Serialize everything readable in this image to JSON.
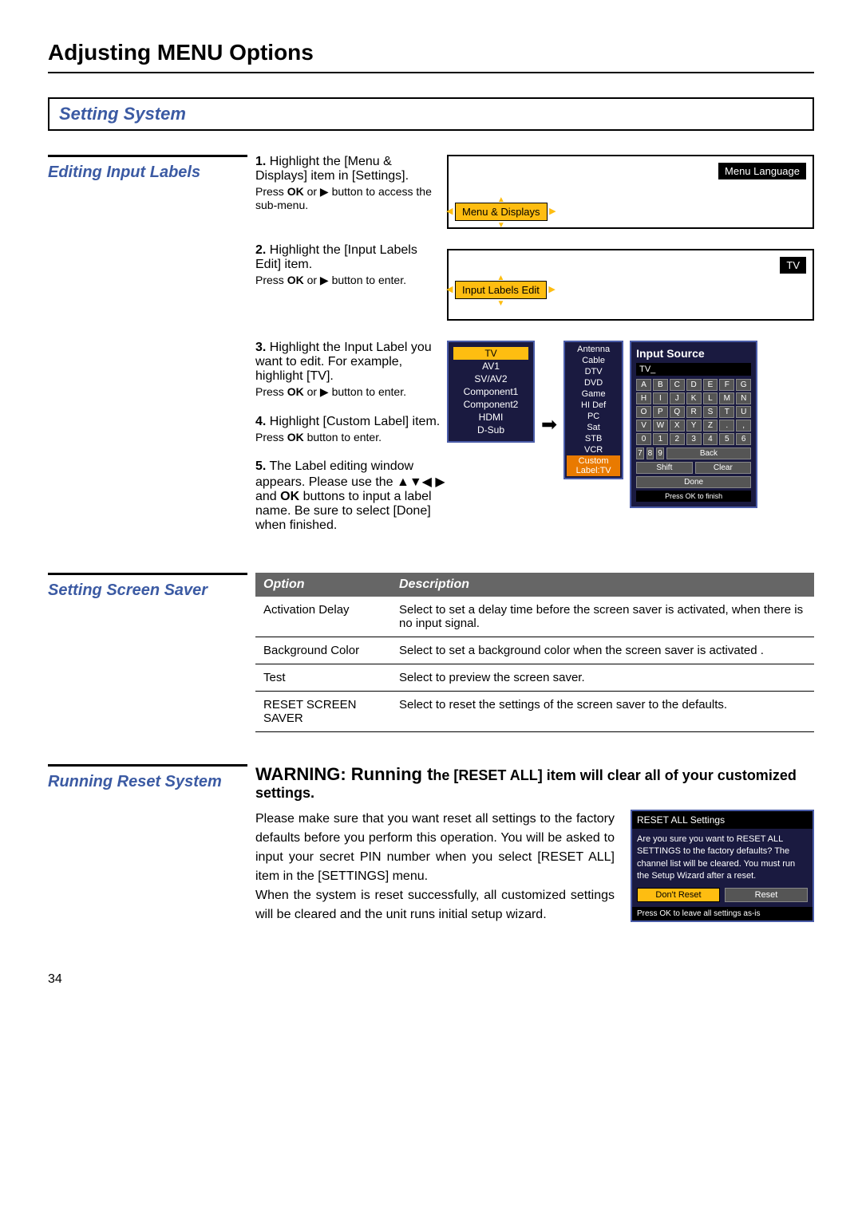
{
  "page_title": "Adjusting MENU Options",
  "section_title": "Setting System",
  "editing_labels": {
    "title": "Editing Input Labels",
    "steps": [
      {
        "num": "1.",
        "text": "Highlight the [Menu & Displays] item in [Settings].",
        "sub": "Press OK or ▶ button to access the sub-menu."
      },
      {
        "num": "2.",
        "text": "Highlight the [Input Labels Edit] item.",
        "sub": "Press OK or ▶ button to enter."
      },
      {
        "num": "3.",
        "text": "Highlight the Input Label you want to edit. For example, highlight [TV].",
        "sub": "Press OK or ▶ button to enter."
      },
      {
        "num": "4.",
        "text": "Highlight [Custom Label] item.",
        "sub": "Press OK button to enter."
      },
      {
        "num": "5.",
        "text": "The Label editing window appears. Please use the ▲▼◀ ▶ and OK buttons to input a label name. Be sure to select [Done] when finished.",
        "sub": ""
      }
    ],
    "osd1": {
      "sel": "Menu & Displays",
      "top": "Menu Language"
    },
    "osd2": {
      "sel": "Input Labels Edit",
      "top": "TV"
    },
    "label_list": [
      "TV",
      "AV1",
      "SV/AV2",
      "Component1",
      "Component2",
      "HDMI",
      "D-Sub"
    ],
    "preset_list": [
      "Antenna",
      "Cable",
      "DTV",
      "DVD",
      "Game",
      "HI Def",
      "PC",
      "Sat",
      "STB",
      "VCR",
      "Custom Label:TV"
    ],
    "keyboard": {
      "title": "Input Source",
      "input": "TV_",
      "keys": [
        "A",
        "B",
        "C",
        "D",
        "E",
        "F",
        "G",
        "H",
        "I",
        "J",
        "K",
        "L",
        "M",
        "N",
        "O",
        "P",
        "Q",
        "R",
        "S",
        "T",
        "U",
        "V",
        "W",
        "X",
        "Y",
        "Z",
        ".",
        ",",
        "0",
        "1",
        "2",
        "3",
        "4",
        "5",
        "6",
        "7",
        "8",
        "9"
      ],
      "back": "Back",
      "shift": "Shift",
      "clear": "Clear",
      "done": "Done",
      "footer": "Press OK to finish"
    }
  },
  "screen_saver": {
    "title": "Setting Screen Saver",
    "th_option": "Option",
    "th_desc": "Description",
    "rows": [
      {
        "opt": "Activation Delay",
        "desc": "Select to set a delay time before the screen saver is activated, when there is no input signal."
      },
      {
        "opt": "Background Color",
        "desc": "Select to set a background color when the screen saver is activated ."
      },
      {
        "opt": "Test",
        "desc": "Select to preview the screen saver."
      },
      {
        "opt": "RESET SCREEN SAVER",
        "desc": "Select to reset the settings of the screen saver to the defaults."
      }
    ]
  },
  "reset": {
    "title": "Running Reset System",
    "warning_pre": "WARNING: Running t",
    "warning_post": "he [RESET ALL] item will clear all of your customized settings.",
    "body1": "Please make sure that you want reset all settings to the factory defaults before you perform this operation. You will be asked to input your secret PIN number when you select [RESET ALL] item in the [SETTINGS] menu.",
    "body2": "When the system is reset successfully, all customized settings will be cleared and the unit runs initial setup wizard.",
    "dialog": {
      "title": "RESET ALL Settings",
      "body": "Are you sure you want to RESET ALL SETTINGS to the factory defaults? The channel list will be cleared. You must run the Setup Wizard after a reset.",
      "dont": "Don't Reset",
      "do": "Reset",
      "footer": "Press OK to leave all settings as-is"
    }
  },
  "page_num": "34"
}
